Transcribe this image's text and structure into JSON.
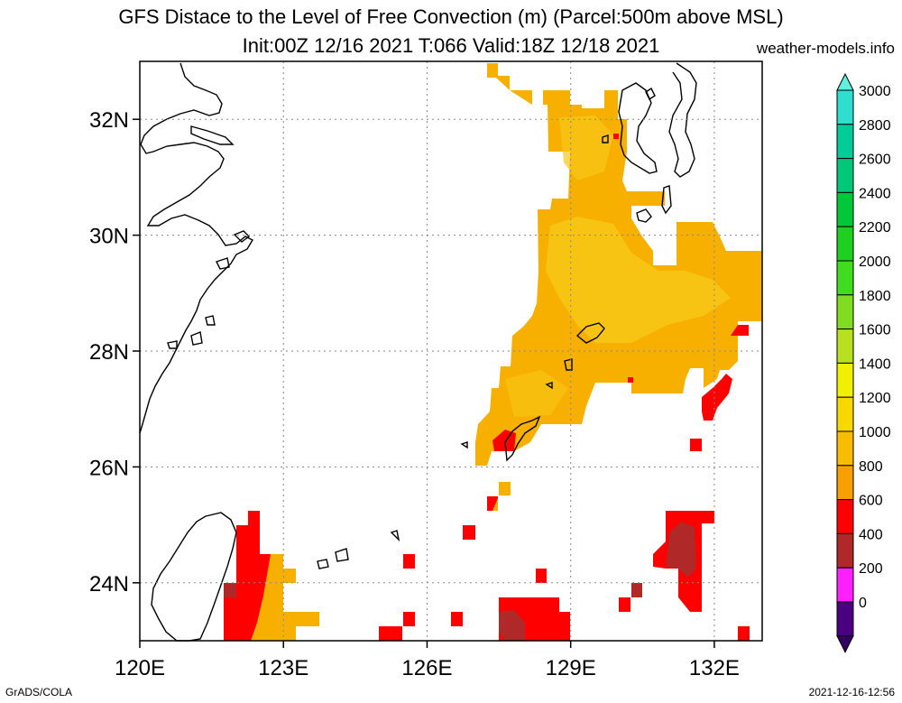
{
  "header": {
    "title_line1": "GFS Distace to the Level of Free Convection (m) (Parcel:500m above MSL)",
    "title_line2": "Init:00Z 12/16 2021 T:066 Valid:18Z 12/18 2021",
    "site": "weather-models.info"
  },
  "footer": {
    "left": "GrADS/COLA",
    "right": "2021-12-16-12:56"
  },
  "map": {
    "lon_labels": [
      "120E",
      "123E",
      "126E",
      "129E",
      "132E"
    ],
    "lat_labels": [
      "32N",
      "30N",
      "28N",
      "26N",
      "24N"
    ],
    "lon_values": [
      120,
      123,
      126,
      129,
      132
    ],
    "lat_values": [
      32,
      30,
      28,
      26,
      24
    ],
    "extent": {
      "lon_min": 120,
      "lon_max": 133,
      "lat_min": 23,
      "lat_max": 33
    },
    "grid_style": "dotted"
  },
  "colorbar": {
    "labels": [
      "3000",
      "2800",
      "2600",
      "2400",
      "2200",
      "2000",
      "1800",
      "1600",
      "1400",
      "1200",
      "1000",
      "800",
      "600",
      "400",
      "200",
      "0"
    ],
    "colors": [
      "#30ded0",
      "#00cc99",
      "#00c878",
      "#00c838",
      "#20d020",
      "#40dc20",
      "#80dc20",
      "#b8e020",
      "#f0f000",
      "#f8d800",
      "#f8bc00",
      "#f8a000",
      "#ff0000",
      "#b02828",
      "#ff20ff",
      "#4b0082"
    ],
    "top_arrow_color": "#60f0e0",
    "bottom_arrow_color": "#320060"
  }
}
